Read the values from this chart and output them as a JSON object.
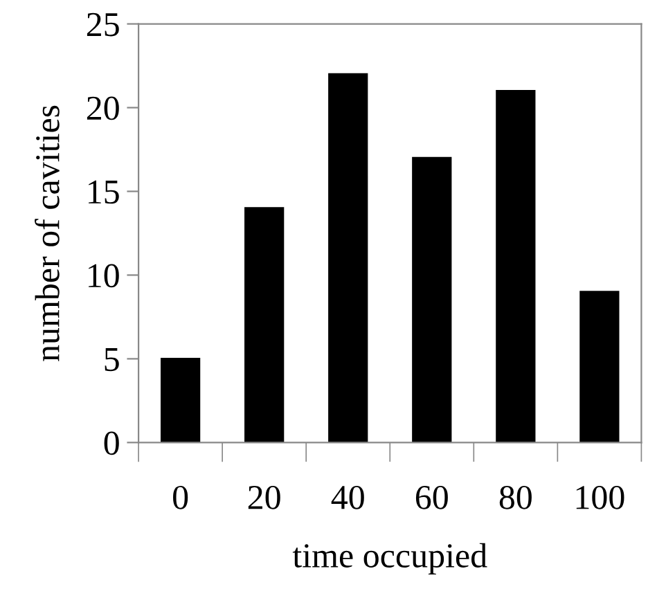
{
  "chart_data": {
    "type": "bar",
    "xlabel": "time occupied",
    "ylabel": "number of cavities",
    "categories": [
      "0",
      "20",
      "40",
      "60",
      "80",
      "100"
    ],
    "values": [
      5,
      14,
      22,
      17,
      21,
      9
    ],
    "color": "#000000",
    "ylim": [
      0,
      25
    ],
    "yticks": [
      0,
      5,
      10,
      15,
      20,
      25
    ],
    "grid": false,
    "legend": false
  }
}
